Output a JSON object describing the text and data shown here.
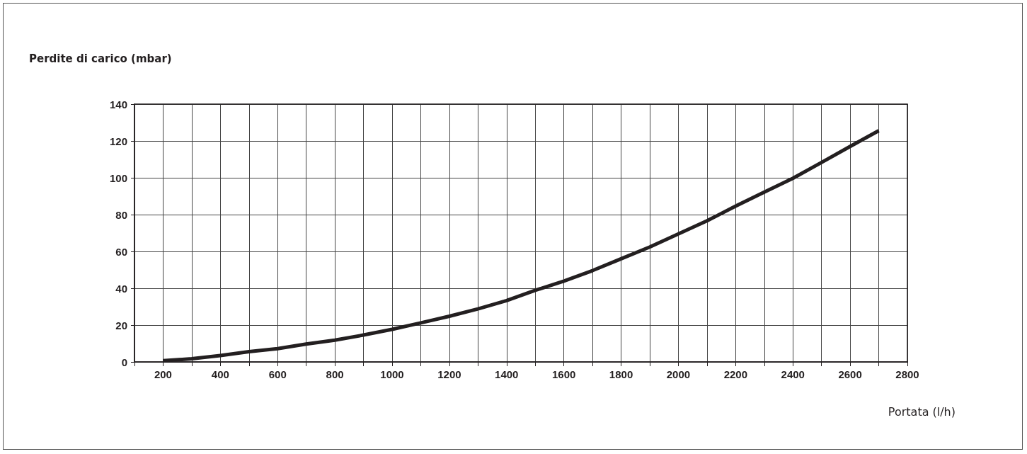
{
  "chart_data": {
    "type": "line",
    "ylabel": "Perdite di carico (mbar)",
    "xlabel": "Portata (l/h)",
    "x": [
      200,
      300,
      400,
      500,
      600,
      700,
      800,
      900,
      1000,
      1100,
      1200,
      1300,
      1400,
      1500,
      1600,
      1700,
      1800,
      1900,
      2000,
      2100,
      2200,
      2300,
      2400,
      2500,
      2600,
      2700
    ],
    "series": [
      {
        "color": "#231f20",
        "values": [
          0.7,
          1.7,
          3.5,
          5.6,
          7.2,
          9.7,
          11.8,
          14.6,
          17.7,
          21.2,
          24.8,
          28.8,
          33.3,
          38.9,
          43.9,
          49.6,
          56.0,
          62.4,
          69.5,
          76.6,
          84.6,
          92.2,
          99.7,
          108.3,
          117.0,
          125.6
        ]
      }
    ],
    "xlim": [
      100,
      2800
    ],
    "xticks": [
      {
        "value": 100,
        "label": null
      },
      200,
      {
        "value": 300,
        "label": null
      },
      400,
      {
        "value": 500,
        "label": null
      },
      600,
      {
        "value": 700,
        "label": null
      },
      800,
      {
        "value": 900,
        "label": null
      },
      1000,
      {
        "value": 1100,
        "label": null
      },
      1200,
      {
        "value": 1300,
        "label": null
      },
      1400,
      {
        "value": 1500,
        "label": null
      },
      1600,
      {
        "value": 1700,
        "label": null
      },
      1800,
      {
        "value": 1900,
        "label": null
      },
      2000,
      {
        "value": 2100,
        "label": null
      },
      2200,
      {
        "value": 2300,
        "label": null
      },
      2400,
      {
        "value": 2500,
        "label": null
      },
      2600,
      {
        "value": 2700,
        "label": null
      },
      2800
    ],
    "ylim": [
      0,
      140
    ],
    "yticks": [
      0,
      20,
      40,
      60,
      80,
      100,
      120,
      140
    ],
    "grid": true,
    "marker": "none",
    "line_style": "solid"
  }
}
